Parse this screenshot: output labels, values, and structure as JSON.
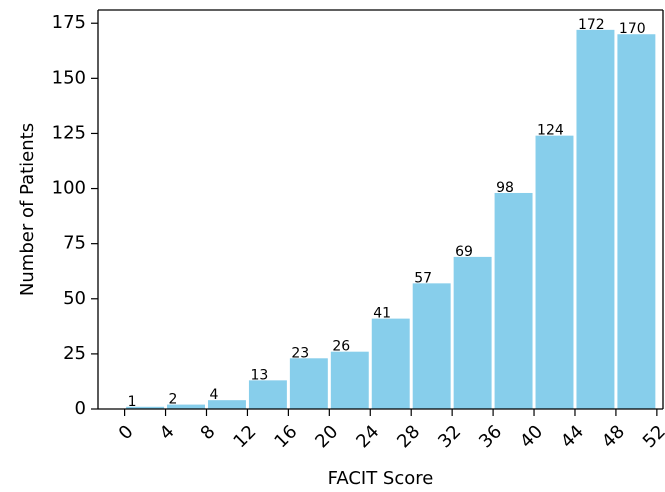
{
  "chart_data": {
    "type": "bar",
    "bin_edges": [
      0,
      4,
      8,
      12,
      16,
      20,
      24,
      28,
      32,
      36,
      40,
      44,
      48,
      52
    ],
    "values": [
      1,
      2,
      4,
      13,
      23,
      26,
      41,
      57,
      69,
      98,
      124,
      172,
      170
    ],
    "xlabel": "FACIT Score",
    "ylabel": "Number of Patients",
    "x_ticks": [
      "0",
      "4",
      "8",
      "12",
      "16",
      "20",
      "24",
      "28",
      "32",
      "36",
      "40",
      "44",
      "48",
      "52"
    ],
    "y_ticks": [
      "0",
      "25",
      "50",
      "75",
      "100",
      "125",
      "150",
      "175"
    ],
    "xlim": [
      -2.6,
      52.6
    ],
    "ylim": [
      0,
      181
    ],
    "grid": false,
    "bar_color": "#87ceeb"
  }
}
